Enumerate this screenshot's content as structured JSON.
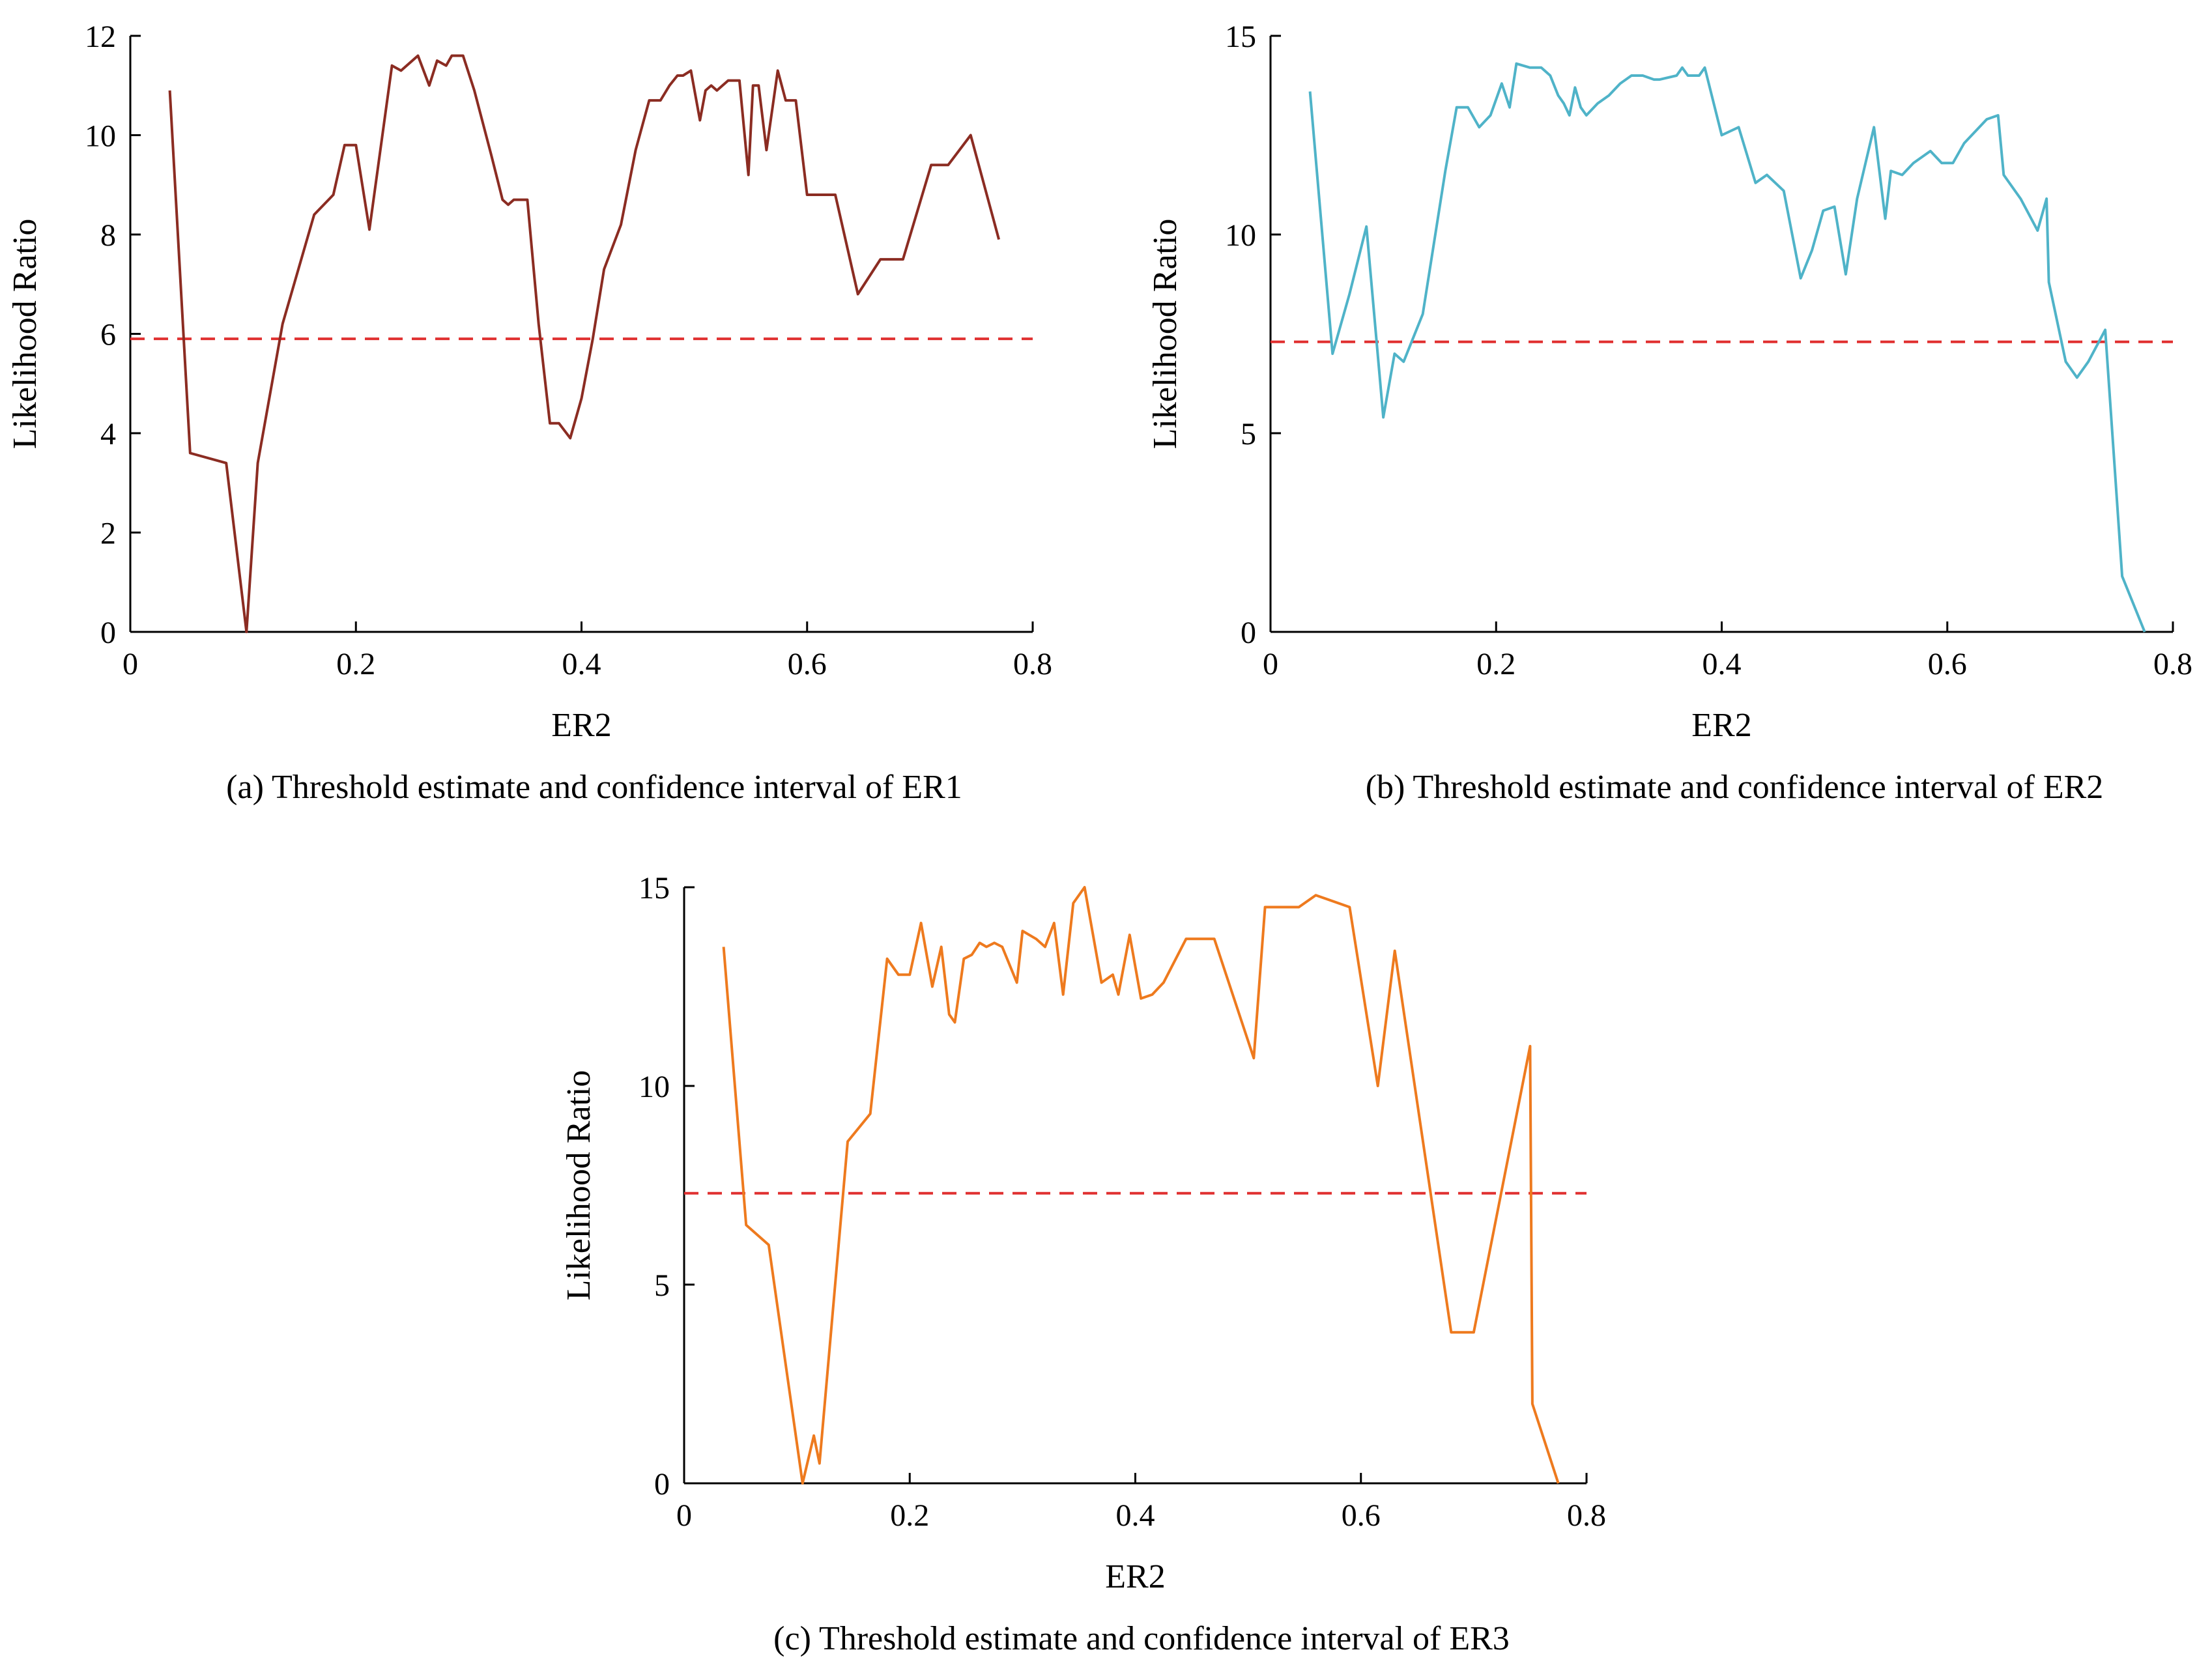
{
  "chart_data": [
    {
      "id": "a",
      "type": "line",
      "caption": "(a) Threshold estimate and confidence interval of ER1",
      "xlabel": "ER2",
      "ylabel": "Likelihood Ratio",
      "xlim": [
        0,
        0.8
      ],
      "ylim": [
        0,
        12
      ],
      "xticks": [
        0,
        0.2,
        0.4,
        0.6,
        0.8
      ],
      "xtick_labels": [
        "0",
        "0.2",
        "0.4",
        "0.6",
        "0.8"
      ],
      "yticks": [
        0,
        2,
        4,
        6,
        8,
        10,
        12
      ],
      "ytick_labels": [
        "0",
        "2",
        "4",
        "6",
        "8",
        "10",
        "12"
      ],
      "line_color": "#8b2c22",
      "threshold": 5.9,
      "threshold_color": "#e03030",
      "series": [
        {
          "name": "LR",
          "x": [
            0.035,
            0.053,
            0.085,
            0.103,
            0.113,
            0.135,
            0.163,
            0.18,
            0.19,
            0.2,
            0.212,
            0.232,
            0.24,
            0.255,
            0.265,
            0.272,
            0.28,
            0.285,
            0.295,
            0.305,
            0.32,
            0.33,
            0.335,
            0.34,
            0.352,
            0.362,
            0.372,
            0.38,
            0.39,
            0.4,
            0.41,
            0.42,
            0.435,
            0.448,
            0.46,
            0.47,
            0.478,
            0.485,
            0.49,
            0.497,
            0.505,
            0.51,
            0.515,
            0.52,
            0.525,
            0.53,
            0.54,
            0.548,
            0.552,
            0.557,
            0.564,
            0.574,
            0.581,
            0.59,
            0.6,
            0.61,
            0.625,
            0.645,
            0.665,
            0.675,
            0.685,
            0.71,
            0.725,
            0.745,
            0.77
          ],
          "y": [
            10.9,
            3.6,
            3.4,
            0.0,
            3.4,
            6.2,
            8.4,
            8.8,
            9.8,
            9.8,
            8.1,
            11.4,
            11.3,
            11.6,
            11.0,
            11.5,
            11.4,
            11.6,
            11.6,
            10.9,
            9.6,
            8.7,
            8.6,
            8.7,
            8.7,
            6.2,
            4.2,
            4.2,
            3.9,
            4.7,
            5.9,
            7.3,
            8.2,
            9.7,
            10.7,
            10.7,
            11.0,
            11.2,
            11.2,
            11.3,
            10.3,
            10.9,
            11.0,
            10.9,
            11.0,
            11.1,
            11.1,
            9.2,
            11.0,
            11.0,
            9.7,
            11.3,
            10.7,
            10.7,
            8.8,
            8.8,
            8.8,
            6.8,
            7.5,
            7.5,
            7.5,
            9.4,
            9.4,
            10.0,
            7.9
          ]
        }
      ]
    },
    {
      "id": "b",
      "type": "line",
      "caption": "(b) Threshold estimate and confidence interval of ER2",
      "xlabel": "ER2",
      "ylabel": "Likelihood Ratio",
      "xlim": [
        0,
        0.8
      ],
      "ylim": [
        0,
        15
      ],
      "xticks": [
        0,
        0.2,
        0.4,
        0.6,
        0.8
      ],
      "xtick_labels": [
        "0",
        "0.2",
        "0.4",
        "0.6",
        "0.8"
      ],
      "yticks": [
        0,
        5,
        10,
        15
      ],
      "ytick_labels": [
        "0",
        "5",
        "10",
        "15"
      ],
      "line_color": "#4fb3c8",
      "threshold": 7.3,
      "threshold_color": "#e03030",
      "series": [
        {
          "name": "LR",
          "x": [
            0.035,
            0.055,
            0.07,
            0.085,
            0.1,
            0.11,
            0.118,
            0.135,
            0.155,
            0.165,
            0.175,
            0.185,
            0.195,
            0.205,
            0.212,
            0.218,
            0.23,
            0.24,
            0.248,
            0.255,
            0.26,
            0.265,
            0.27,
            0.275,
            0.28,
            0.29,
            0.3,
            0.31,
            0.32,
            0.33,
            0.34,
            0.345,
            0.36,
            0.365,
            0.37,
            0.38,
            0.385,
            0.4,
            0.415,
            0.43,
            0.44,
            0.455,
            0.47,
            0.48,
            0.49,
            0.5,
            0.51,
            0.52,
            0.535,
            0.545,
            0.55,
            0.56,
            0.57,
            0.585,
            0.595,
            0.605,
            0.615,
            0.635,
            0.645,
            0.65,
            0.665,
            0.68,
            0.688,
            0.69,
            0.705,
            0.715,
            0.725,
            0.74,
            0.755,
            0.775
          ],
          "y": [
            13.6,
            7.0,
            8.5,
            10.2,
            5.4,
            7.0,
            6.8,
            8.0,
            11.6,
            13.2,
            13.2,
            12.7,
            13.0,
            13.8,
            13.2,
            14.3,
            14.2,
            14.2,
            14.0,
            13.5,
            13.3,
            13.0,
            13.7,
            13.2,
            13.0,
            13.3,
            13.5,
            13.8,
            14.0,
            14.0,
            13.9,
            13.9,
            14.0,
            14.2,
            14.0,
            14.0,
            14.2,
            12.5,
            12.7,
            11.3,
            11.5,
            11.1,
            8.9,
            9.6,
            10.6,
            10.7,
            9.0,
            10.9,
            12.7,
            10.4,
            11.6,
            11.5,
            11.8,
            12.1,
            11.8,
            11.8,
            12.3,
            12.9,
            13.0,
            11.5,
            10.9,
            10.1,
            10.9,
            8.8,
            6.8,
            6.4,
            6.8,
            7.6,
            1.4,
            0.0
          ]
        }
      ]
    },
    {
      "id": "c",
      "type": "line",
      "caption": "(c) Threshold estimate and confidence interval of ER3",
      "xlabel": "ER2",
      "ylabel": "Likelihood Ratio",
      "xlim": [
        0,
        0.8
      ],
      "ylim": [
        0,
        15
      ],
      "xticks": [
        0,
        0.2,
        0.4,
        0.6,
        0.8
      ],
      "xtick_labels": [
        "0",
        "0.2",
        "0.4",
        "0.6",
        "0.8"
      ],
      "yticks": [
        0,
        5,
        10,
        15
      ],
      "ytick_labels": [
        "0",
        "5",
        "10",
        "15"
      ],
      "line_color": "#ee7a1e",
      "threshold": 7.3,
      "threshold_color": "#e03030",
      "series": [
        {
          "name": "LR",
          "x": [
            0.035,
            0.055,
            0.075,
            0.105,
            0.115,
            0.12,
            0.145,
            0.165,
            0.18,
            0.19,
            0.2,
            0.21,
            0.22,
            0.228,
            0.235,
            0.24,
            0.248,
            0.255,
            0.262,
            0.268,
            0.275,
            0.282,
            0.295,
            0.3,
            0.312,
            0.32,
            0.328,
            0.336,
            0.345,
            0.355,
            0.37,
            0.38,
            0.385,
            0.395,
            0.405,
            0.415,
            0.425,
            0.445,
            0.47,
            0.505,
            0.515,
            0.545,
            0.56,
            0.59,
            0.615,
            0.63,
            0.68,
            0.7,
            0.75,
            0.752,
            0.775
          ],
          "y": [
            13.5,
            6.5,
            6.0,
            0.0,
            1.2,
            0.5,
            8.6,
            9.3,
            13.2,
            12.8,
            12.8,
            14.1,
            12.5,
            13.5,
            11.8,
            11.6,
            13.2,
            13.3,
            13.6,
            13.5,
            13.6,
            13.5,
            12.6,
            13.9,
            13.7,
            13.5,
            14.1,
            12.3,
            14.6,
            15.0,
            12.6,
            12.8,
            12.3,
            13.8,
            12.2,
            12.3,
            12.6,
            13.7,
            13.7,
            10.7,
            14.5,
            14.5,
            14.8,
            14.5,
            10.0,
            13.4,
            3.8,
            3.8,
            11.0,
            2.0,
            0.0
          ]
        }
      ]
    }
  ]
}
